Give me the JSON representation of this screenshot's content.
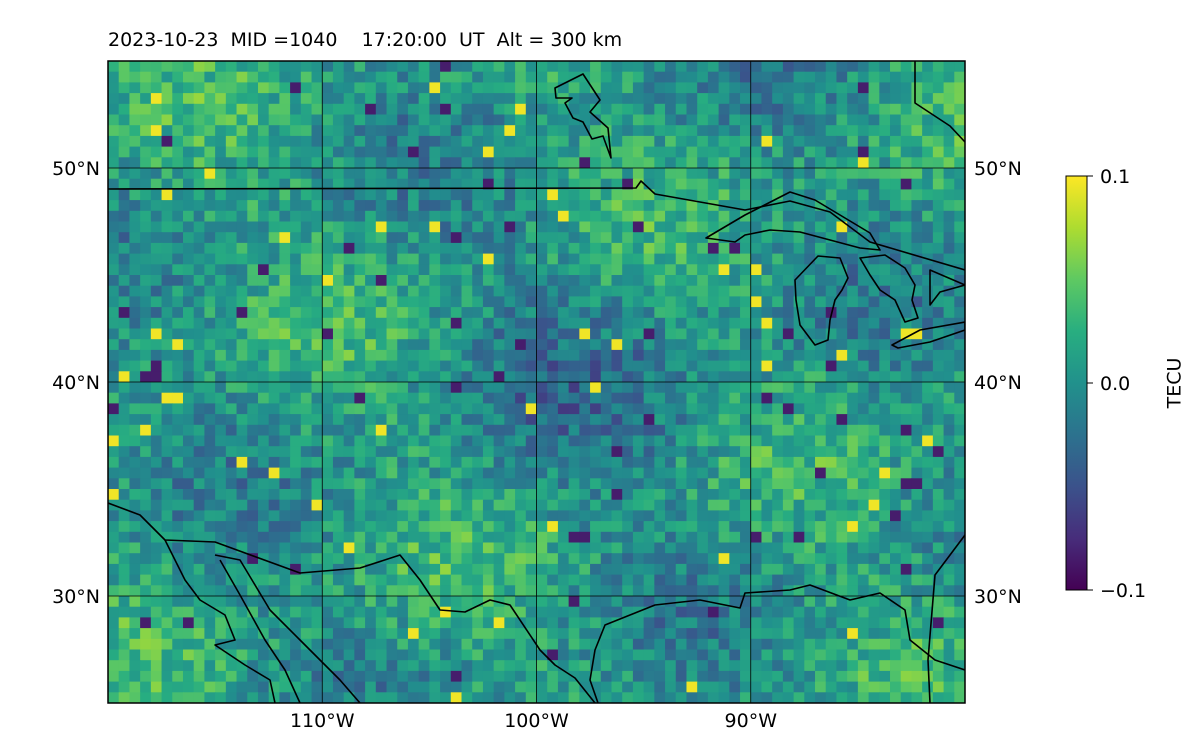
{
  "title": "2023-10-23  MID =1040    17:20:00  UT  Alt = 300 km",
  "map": {
    "lon_range": [
      -120,
      -80
    ],
    "lat_range": [
      25,
      55
    ],
    "grid": true,
    "grid_lons": [
      -110,
      -100,
      -90
    ],
    "grid_lats": [
      30,
      40,
      50
    ],
    "lon_labels": [
      "110°W",
      "100°W",
      "90°W"
    ],
    "lat_labels": [
      "30°N",
      "40°N",
      "50°N"
    ],
    "field": "TEC perturbation",
    "cell_size_deg": 0.5,
    "coastline_color": "#000000"
  },
  "colorbar": {
    "label": "TECU",
    "colormap": "viridis",
    "range": [
      -0.1,
      0.1
    ],
    "ticks": [
      "0.1",
      "0.0",
      "−0.1"
    ]
  }
}
